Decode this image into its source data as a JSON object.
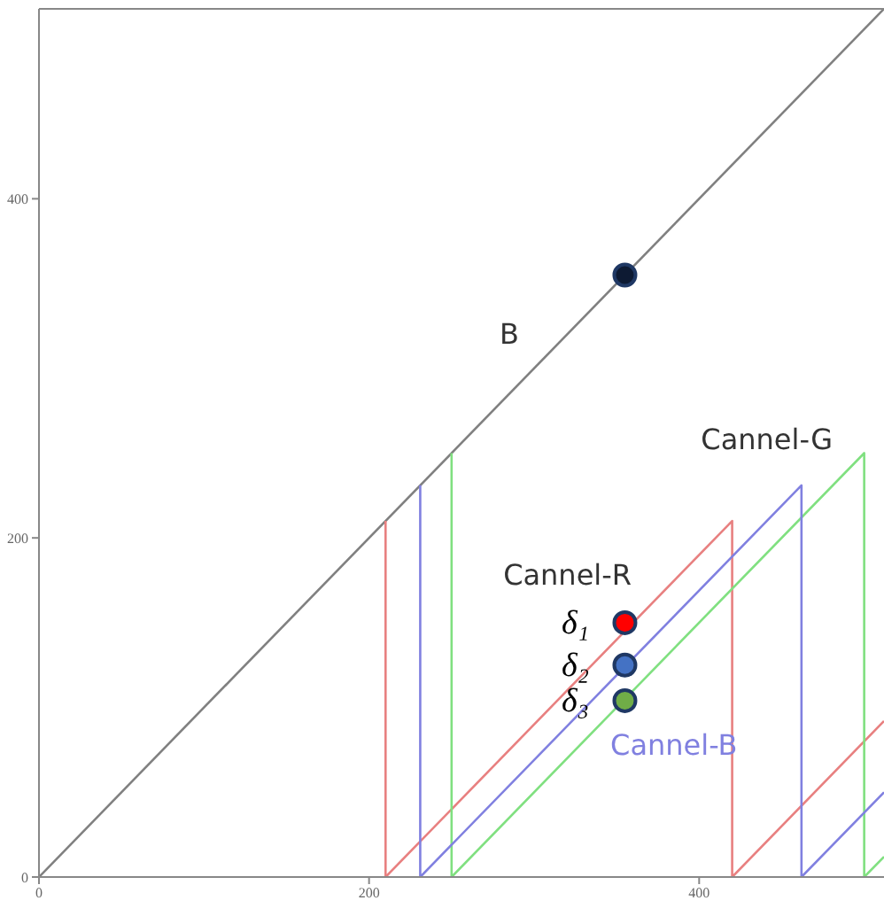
{
  "chart_data": {
    "type": "line",
    "xlim": [
      0,
      512
    ],
    "ylim": [
      0,
      512
    ],
    "xticks": [
      0,
      200,
      400
    ],
    "yticks": [
      0,
      200,
      400
    ],
    "grid": false,
    "legend": false,
    "series": [
      {
        "name": "B",
        "color": "#808080",
        "x": [
          0,
          512
        ],
        "values": [
          0,
          512
        ]
      },
      {
        "name": "Cannel-R",
        "color": "#e88080",
        "x": [
          210,
          210,
          420,
          420,
          512
        ],
        "values": [
          210,
          0,
          210,
          0,
          92
        ]
      },
      {
        "name": "Cannel-G",
        "color": "#80e080",
        "x": [
          250,
          250,
          500,
          500,
          512
        ],
        "values": [
          250,
          0,
          250,
          0,
          12
        ]
      },
      {
        "name": "Cannel-B",
        "color": "#8080e0",
        "x": [
          231,
          231,
          462,
          462,
          512
        ],
        "values": [
          231,
          0,
          231,
          0,
          50
        ]
      },
      {
        "type": "scatter",
        "color": "#0d1a33",
        "x": [
          355
        ],
        "values": [
          355
        ]
      },
      {
        "type": "scatter",
        "name": "δ₁",
        "color": "#ff0000",
        "x": [
          355
        ],
        "values": [
          150
        ]
      },
      {
        "type": "scatter",
        "name": "δ₂",
        "color": "#4472c4",
        "x": [
          355
        ],
        "values": [
          125
        ]
      },
      {
        "type": "scatter",
        "name": "δ₃",
        "color": "#70ad47",
        "x": [
          355
        ],
        "values": [
          104
        ]
      }
    ]
  }
}
